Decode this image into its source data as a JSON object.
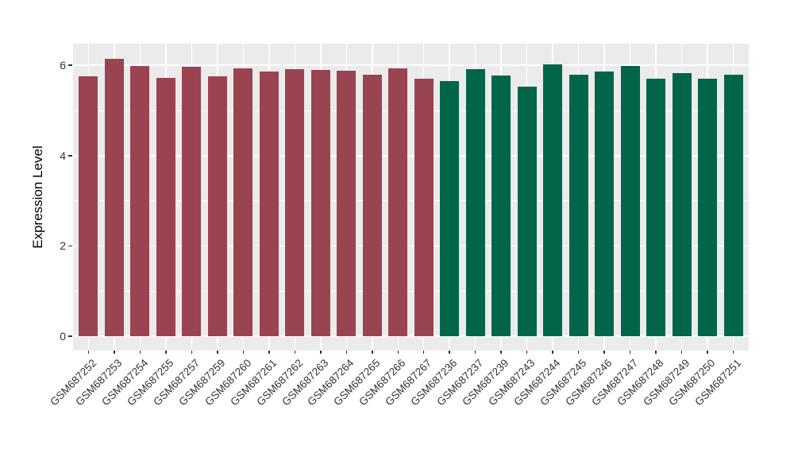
{
  "figure": {
    "background": "#FFFFFF",
    "panel_background": "#EBEBEB",
    "gridline_color": "#FFFFFF",
    "axis_text_color": "#333333",
    "axis_title_color": "#000000",
    "tick_mark_color": "#333333"
  },
  "chart_data": {
    "type": "bar",
    "title": "",
    "xlabel": "",
    "ylabel": "Expression Level",
    "ylim": [
      -0.32,
      6.48
    ],
    "yticks": [
      0,
      2,
      4,
      6
    ],
    "yticks_minor": [
      1,
      3,
      5
    ],
    "grid": "white major+minor horizontal gridlines and vertical gridlines at category centers on gray panel",
    "legend_position": "none",
    "x_tick_angle_deg": 45,
    "categories": [
      "GSM687252",
      "GSM687253",
      "GSM687254",
      "GSM687255",
      "GSM687257",
      "GSM687259",
      "GSM687260",
      "GSM687261",
      "GSM687262",
      "GSM687263",
      "GSM687264",
      "GSM687265",
      "GSM687266",
      "GSM687267",
      "GSM687236",
      "GSM687237",
      "GSM687239",
      "GSM687243",
      "GSM687244",
      "GSM687245",
      "GSM687246",
      "GSM687247",
      "GSM687248",
      "GSM687249",
      "GSM687250",
      "GSM687251"
    ],
    "values": [
      5.76,
      6.15,
      5.99,
      5.73,
      5.97,
      5.75,
      5.94,
      5.86,
      5.91,
      5.89,
      5.88,
      5.79,
      5.94,
      5.71,
      5.65,
      5.92,
      5.78,
      5.52,
      6.02,
      5.8,
      5.86,
      5.99,
      5.7,
      5.83,
      5.7,
      5.79
    ],
    "bar_colors": [
      "#9B4451",
      "#9B4451",
      "#9B4451",
      "#9B4451",
      "#9B4451",
      "#9B4451",
      "#9B4451",
      "#9B4451",
      "#9B4451",
      "#9B4451",
      "#9B4451",
      "#9B4451",
      "#9B4451",
      "#9B4451",
      "#016649",
      "#016649",
      "#016649",
      "#016649",
      "#016649",
      "#016649",
      "#016649",
      "#016649",
      "#016649",
      "#016649",
      "#016649",
      "#016649"
    ],
    "group_color_left": "#9B4451",
    "group_color_right": "#016649"
  }
}
